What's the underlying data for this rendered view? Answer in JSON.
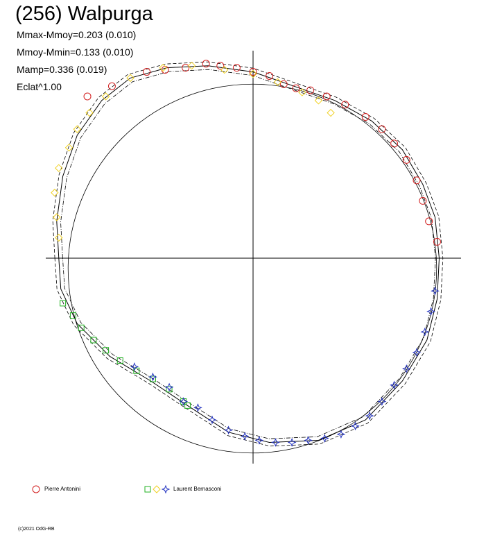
{
  "title": "(256) Walpurga",
  "stats": [
    "Mmax-Mmoy=0.203 (0.010)",
    "Mmoy-Mmin=0.133 (0.010)",
    "Mamp=0.336 (0.019)",
    "Eclat^1.00"
  ],
  "footer": "(c)2021 OdG-RB",
  "legend": [
    {
      "label": "Pierre Antonini",
      "symbols": [
        "circle"
      ],
      "colors": [
        "#d32020"
      ]
    },
    {
      "label": "Laurent Bernasconi",
      "symbols": [
        "square",
        "diamond",
        "star"
      ],
      "colors": [
        "#20b020",
        "#f0d020",
        "#2030c0"
      ]
    }
  ],
  "chart_data": {
    "type": "scatter",
    "description_type": "polar lightcurve",
    "axes": {
      "horizontal_line": true,
      "vertical_line": true
    },
    "series": [
      {
        "name": "Pierre Antonini",
        "marker": "circle",
        "color": "#d32020",
        "points": [
          {
            "x": -0.81,
            "y": 0.79
          },
          {
            "x": -0.69,
            "y": 0.84
          },
          {
            "x": -0.52,
            "y": 0.91
          },
          {
            "x": -0.43,
            "y": 0.92
          },
          {
            "x": -0.33,
            "y": 0.93
          },
          {
            "x": -0.23,
            "y": 0.95
          },
          {
            "x": -0.16,
            "y": 0.94
          },
          {
            "x": -0.08,
            "y": 0.93
          },
          {
            "x": 0.0,
            "y": 0.91
          },
          {
            "x": 0.08,
            "y": 0.89
          },
          {
            "x": 0.15,
            "y": 0.85
          },
          {
            "x": 0.21,
            "y": 0.83
          },
          {
            "x": 0.28,
            "y": 0.82
          },
          {
            "x": 0.36,
            "y": 0.79
          },
          {
            "x": 0.45,
            "y": 0.75
          },
          {
            "x": 0.55,
            "y": 0.69
          },
          {
            "x": 0.63,
            "y": 0.63
          },
          {
            "x": 0.69,
            "y": 0.56
          },
          {
            "x": 0.75,
            "y": 0.48
          },
          {
            "x": 0.8,
            "y": 0.38
          },
          {
            "x": 0.83,
            "y": 0.28
          },
          {
            "x": 0.86,
            "y": 0.18
          },
          {
            "x": 0.9,
            "y": 0.08
          }
        ]
      },
      {
        "name": "Laurent Bernasconi (green)",
        "marker": "square",
        "color": "#20b020",
        "points": [
          {
            "x": -0.93,
            "y": -0.22
          },
          {
            "x": -0.88,
            "y": -0.28
          },
          {
            "x": -0.84,
            "y": -0.34
          },
          {
            "x": -0.78,
            "y": -0.4
          },
          {
            "x": -0.72,
            "y": -0.45
          },
          {
            "x": -0.65,
            "y": -0.5
          },
          {
            "x": -0.57,
            "y": -0.55
          },
          {
            "x": -0.49,
            "y": -0.59
          },
          {
            "x": -0.41,
            "y": -0.64
          },
          {
            "x": -0.34,
            "y": -0.7
          },
          {
            "x": -0.32,
            "y": -0.72
          }
        ]
      },
      {
        "name": "Laurent Bernasconi (yellow)",
        "marker": "diamond",
        "color": "#f0d020",
        "points": [
          {
            "x": -0.95,
            "y": 0.1
          },
          {
            "x": -0.96,
            "y": 0.2
          },
          {
            "x": -0.97,
            "y": 0.32
          },
          {
            "x": -0.95,
            "y": 0.44
          },
          {
            "x": -0.9,
            "y": 0.54
          },
          {
            "x": -0.86,
            "y": 0.63
          },
          {
            "x": -0.8,
            "y": 0.71
          },
          {
            "x": -0.72,
            "y": 0.79
          },
          {
            "x": -0.6,
            "y": 0.88
          },
          {
            "x": -0.44,
            "y": 0.93
          },
          {
            "x": -0.3,
            "y": 0.94
          },
          {
            "x": -0.14,
            "y": 0.92
          },
          {
            "x": 0.0,
            "y": 0.9
          },
          {
            "x": 0.12,
            "y": 0.86
          },
          {
            "x": 0.24,
            "y": 0.81
          },
          {
            "x": 0.32,
            "y": 0.77
          },
          {
            "x": 0.38,
            "y": 0.71
          }
        ]
      },
      {
        "name": "Laurent Bernasconi (blue)",
        "marker": "star",
        "color": "#2030c0",
        "points": [
          {
            "x": -0.58,
            "y": -0.53
          },
          {
            "x": -0.49,
            "y": -0.58
          },
          {
            "x": -0.41,
            "y": -0.63
          },
          {
            "x": -0.34,
            "y": -0.7
          },
          {
            "x": -0.27,
            "y": -0.73
          },
          {
            "x": -0.2,
            "y": -0.79
          },
          {
            "x": -0.12,
            "y": -0.84
          },
          {
            "x": -0.04,
            "y": -0.87
          },
          {
            "x": 0.03,
            "y": -0.89
          },
          {
            "x": 0.11,
            "y": -0.9
          },
          {
            "x": 0.19,
            "y": -0.9
          },
          {
            "x": 0.27,
            "y": -0.89
          },
          {
            "x": 0.35,
            "y": -0.88
          },
          {
            "x": 0.43,
            "y": -0.86
          },
          {
            "x": 0.5,
            "y": -0.82
          },
          {
            "x": 0.57,
            "y": -0.77
          },
          {
            "x": 0.63,
            "y": -0.7
          },
          {
            "x": 0.69,
            "y": -0.62
          },
          {
            "x": 0.75,
            "y": -0.54
          },
          {
            "x": 0.8,
            "y": -0.46
          },
          {
            "x": 0.84,
            "y": -0.36
          },
          {
            "x": 0.87,
            "y": -0.26
          },
          {
            "x": 0.89,
            "y": -0.16
          }
        ]
      }
    ],
    "reference_circle": {
      "radius": 0.91
    },
    "fit_curve": [
      [
        -0.95,
        0.0
      ],
      [
        -0.96,
        0.18
      ],
      [
        -0.93,
        0.4
      ],
      [
        -0.86,
        0.6
      ],
      [
        -0.74,
        0.77
      ],
      [
        -0.6,
        0.88
      ],
      [
        -0.42,
        0.93
      ],
      [
        -0.22,
        0.94
      ],
      [
        0.0,
        0.91
      ],
      [
        0.2,
        0.84
      ],
      [
        0.4,
        0.77
      ],
      [
        0.58,
        0.67
      ],
      [
        0.73,
        0.53
      ],
      [
        0.83,
        0.36
      ],
      [
        0.89,
        0.2
      ],
      [
        0.91,
        0.0
      ],
      [
        0.9,
        -0.2
      ],
      [
        0.85,
        -0.4
      ],
      [
        0.73,
        -0.6
      ],
      [
        0.55,
        -0.79
      ],
      [
        0.32,
        -0.89
      ],
      [
        0.08,
        -0.9
      ],
      [
        -0.12,
        -0.85
      ],
      [
        -0.32,
        -0.72
      ],
      [
        -0.5,
        -0.6
      ],
      [
        -0.7,
        -0.48
      ],
      [
        -0.86,
        -0.32
      ],
      [
        -0.94,
        -0.15
      ],
      [
        -0.95,
        0.0
      ]
    ]
  }
}
